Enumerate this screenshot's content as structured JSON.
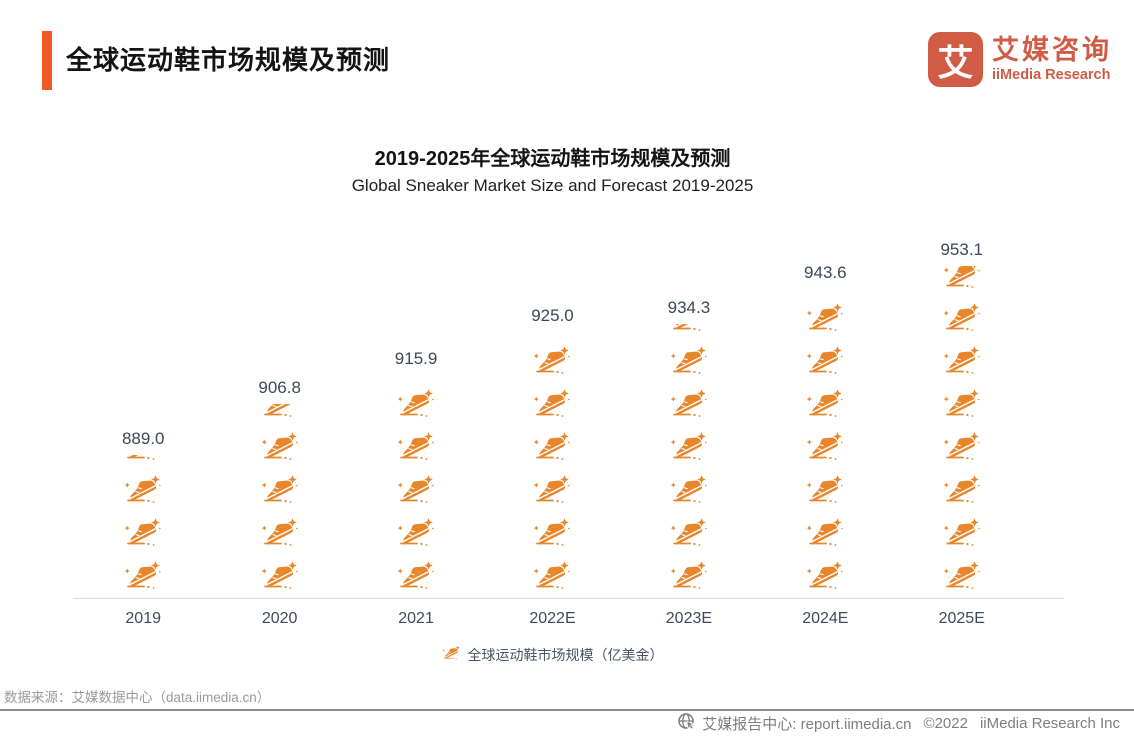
{
  "header": {
    "title": "全球运动鞋市场规模及预测",
    "logo": {
      "mark": "艾",
      "name_cn": "艾媒咨询",
      "name_en": "iiMedia Research",
      "color": "#D05C45"
    }
  },
  "chart_data": {
    "type": "bar",
    "style": "pictorial-sneaker-icons",
    "title": "2019-2025年全球运动鞋市场规模及预测",
    "subtitle": "Global Sneaker Market Size and Forecast 2019-2025",
    "categories": [
      "2019",
      "2020",
      "2021",
      "2022E",
      "2023E",
      "2024E",
      "2025E"
    ],
    "values": [
      889.0,
      906.8,
      915.9,
      925.0,
      934.3,
      943.6,
      953.1
    ],
    "series_name": "全球运动鞋市场规模（亿美金）",
    "unit": "亿美金",
    "icon": "sneaker-icon",
    "icon_rows": [
      3.2,
      4.45,
      5,
      6,
      6.25,
      7,
      7.75
    ],
    "grid": false,
    "legend_position": "bottom",
    "accent_color": "#E8862C",
    "label_color": "#3C4858"
  },
  "legend": {
    "label": "全球运动鞋市场规模（亿美金）"
  },
  "footer": {
    "source": "数据来源：艾媒数据中心（data.iimedia.cn）",
    "report_center": "艾媒报告中心:  report.iimedia.cn",
    "copyright": "©2022",
    "company": "iiMedia Research  Inc"
  }
}
